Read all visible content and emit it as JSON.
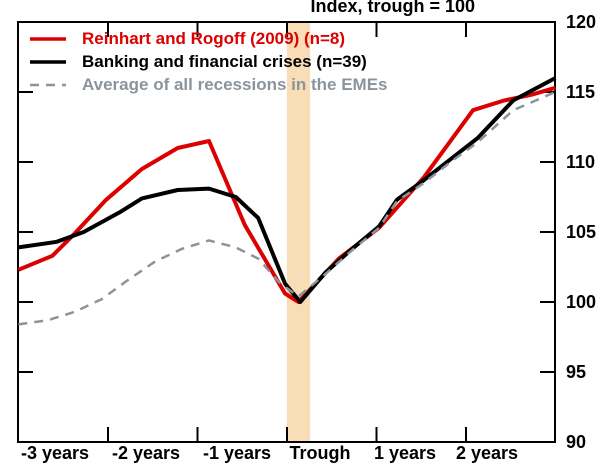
{
  "title": "Index, trough = 100",
  "legend": {
    "items": [
      {
        "id": "reinhart",
        "label": "Reinhart and Rogoff (2009) (n=8)",
        "color": "#dc0000",
        "dash": "solid"
      },
      {
        "id": "banking",
        "label": "Banking and financial crises (n=39)",
        "color": "#000000",
        "dash": "solid"
      },
      {
        "id": "eme-average",
        "label": "Average of all recessions in the EMEs",
        "color": "#8b949c",
        "dash": "dashed"
      }
    ]
  },
  "chart_data": {
    "type": "line",
    "title": "Index, trough = 100",
    "xlabel": "",
    "ylabel": "Index, trough = 100",
    "x_tick_labels": [
      "-3 years",
      "-2 years",
      "-1 years",
      "Trough",
      "1 years",
      "2 years"
    ],
    "y_tick_labels": [
      90,
      95,
      100,
      105,
      110,
      115,
      120
    ],
    "y_range": [
      90,
      120
    ],
    "x_range_years": [
      -3.13,
      2.87
    ],
    "grid": false,
    "legend_position": "top-left-inside",
    "trough_band_years": [
      -0.13,
      0.13
    ],
    "band_color": "#f9ddb7",
    "series": [
      {
        "id": "reinhart",
        "name": "Reinhart and Rogoff (2009) (n=8)",
        "color": "#dc0000",
        "dash": "solid",
        "points": [
          [
            -3.13,
            102.3
          ],
          [
            -2.75,
            103.3
          ],
          [
            -2.5,
            104.9
          ],
          [
            -2.15,
            107.3
          ],
          [
            -1.75,
            109.5
          ],
          [
            -1.35,
            111.0
          ],
          [
            -1.0,
            111.5
          ],
          [
            -0.6,
            105.5
          ],
          [
            -0.15,
            100.6
          ],
          [
            0,
            100.0
          ],
          [
            0.45,
            103.1
          ],
          [
            0.9,
            105.3
          ],
          [
            1.4,
            108.9
          ],
          [
            1.95,
            113.7
          ],
          [
            2.3,
            114.4
          ],
          [
            2.6,
            114.8
          ],
          [
            2.87,
            115.3
          ]
        ]
      },
      {
        "id": "banking",
        "name": "Banking and financial crises (n=39)",
        "color": "#000000",
        "dash": "solid",
        "points": [
          [
            -3.13,
            103.9
          ],
          [
            -2.7,
            104.3
          ],
          [
            -2.4,
            105.0
          ],
          [
            -2.0,
            106.4
          ],
          [
            -1.75,
            107.4
          ],
          [
            -1.35,
            108.0
          ],
          [
            -1.0,
            108.1
          ],
          [
            -0.7,
            107.5
          ],
          [
            -0.45,
            106.0
          ],
          [
            -0.15,
            101.3
          ],
          [
            0.02,
            100.0
          ],
          [
            0.3,
            102.1
          ],
          [
            0.6,
            103.8
          ],
          [
            0.9,
            105.4
          ],
          [
            1.1,
            107.3
          ],
          [
            1.4,
            108.7
          ],
          [
            1.7,
            110.2
          ],
          [
            2.0,
            111.7
          ],
          [
            2.4,
            114.4
          ],
          [
            2.87,
            116.0
          ]
        ]
      },
      {
        "id": "eme-average",
        "name": "Average of all recessions in the EMEs",
        "color": "#8b949c",
        "dash": "dashed",
        "points": [
          [
            -3.13,
            98.4
          ],
          [
            -2.8,
            98.7
          ],
          [
            -2.5,
            99.3
          ],
          [
            -2.2,
            100.2
          ],
          [
            -1.9,
            101.6
          ],
          [
            -1.6,
            102.9
          ],
          [
            -1.3,
            103.8
          ],
          [
            -1.0,
            104.4
          ],
          [
            -0.7,
            103.9
          ],
          [
            -0.45,
            103.1
          ],
          [
            -0.2,
            101.3
          ],
          [
            0,
            100.4
          ],
          [
            0.3,
            102.0
          ],
          [
            0.6,
            103.7
          ],
          [
            0.9,
            105.3
          ],
          [
            1.1,
            107.2
          ],
          [
            1.4,
            108.5
          ],
          [
            1.7,
            110.0
          ],
          [
            2.0,
            111.4
          ],
          [
            2.4,
            113.7
          ],
          [
            2.87,
            115.0
          ]
        ]
      }
    ]
  }
}
